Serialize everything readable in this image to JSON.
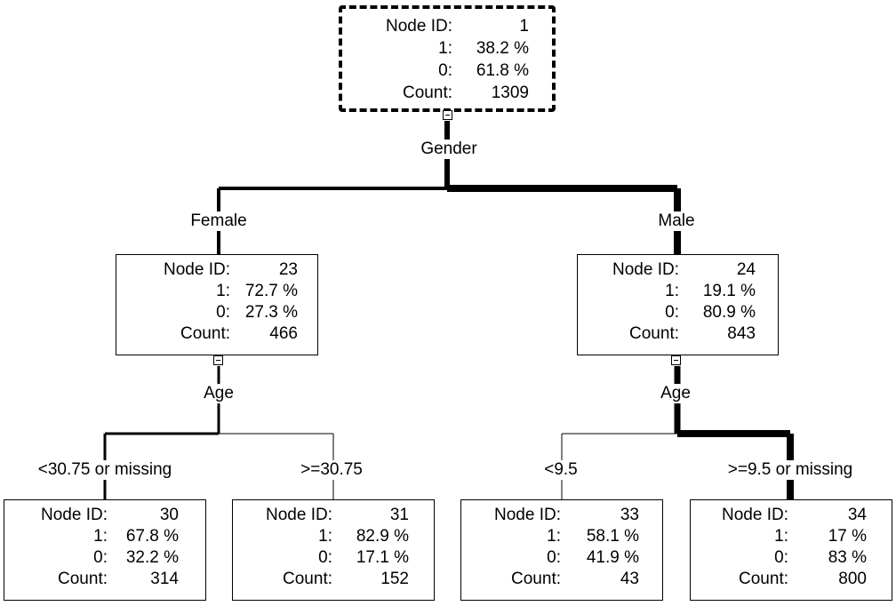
{
  "labels": {
    "node_id": "Node ID:",
    "class1": "1:",
    "class0": "0:",
    "count": "Count:"
  },
  "nodes": [
    {
      "id": "1",
      "pct1": "38.2 %",
      "pct0": "61.8 %",
      "count": "1309"
    },
    {
      "id": "23",
      "pct1": "72.7 %",
      "pct0": "27.3 %",
      "count": "466"
    },
    {
      "id": "24",
      "pct1": "19.1 %",
      "pct0": "80.9 %",
      "count": "843"
    },
    {
      "id": "30",
      "pct1": "67.8 %",
      "pct0": "32.2 %",
      "count": "314"
    },
    {
      "id": "31",
      "pct1": "82.9 %",
      "pct0": "17.1 %",
      "count": "152"
    },
    {
      "id": "33",
      "pct1": "58.1 %",
      "pct0": "41.9 %",
      "count": "43"
    },
    {
      "id": "34",
      "pct1": "17 %",
      "pct0": "83 %",
      "count": "800"
    }
  ],
  "splits": {
    "root": "Gender",
    "n23": "Age",
    "n24": "Age"
  },
  "branches": {
    "female": "Female",
    "male": "Male",
    "n30": "<30.75 or missing",
    "n31": ">=30.75",
    "n33": "<9.5",
    "n34": ">=9.5 or missing"
  }
}
